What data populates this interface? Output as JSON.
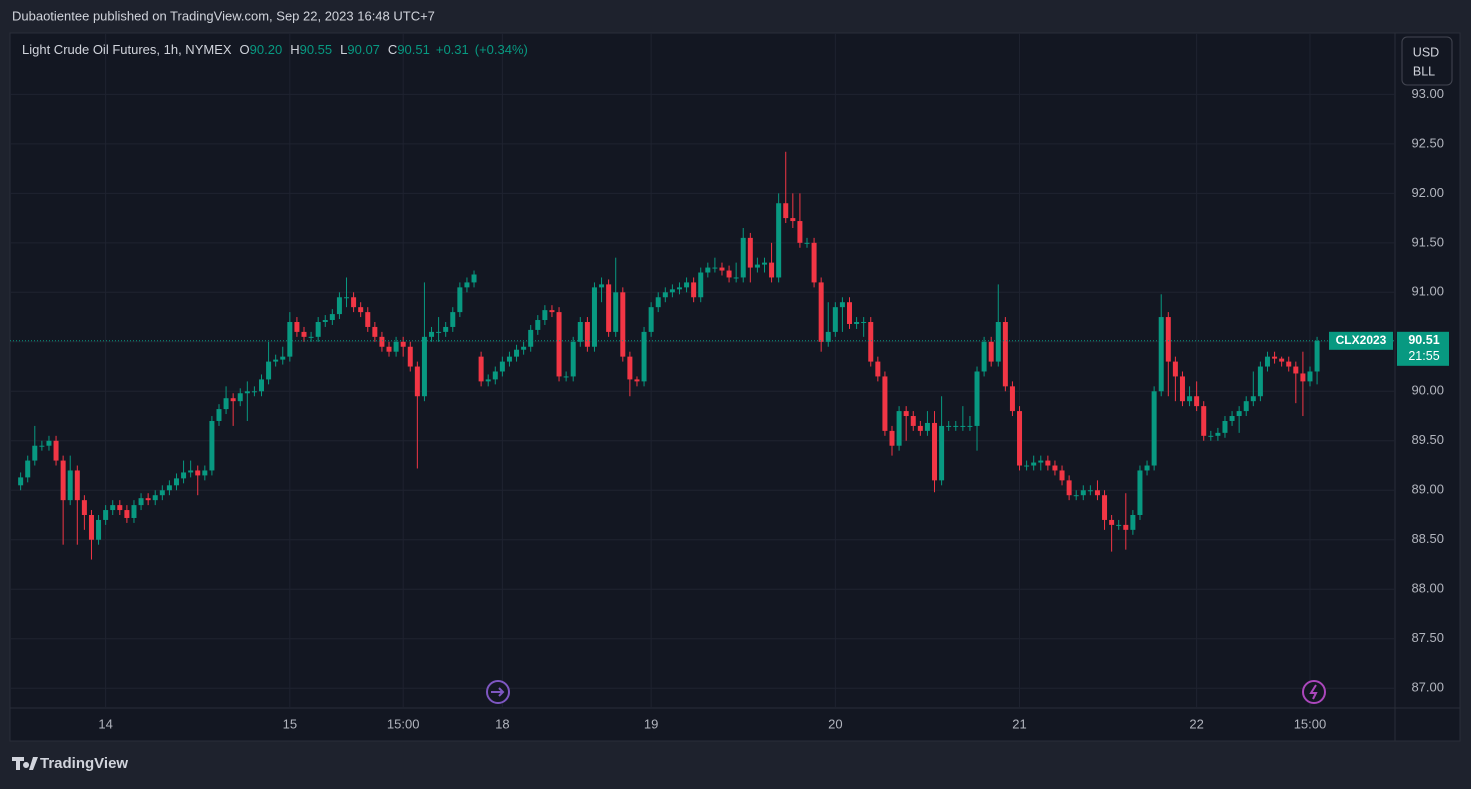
{
  "header": {
    "text": "Dubaotientee published on TradingView.com, Sep 22, 2023 16:48 UTC+7"
  },
  "footer": {
    "brand": "TradingView"
  },
  "chart_data": {
    "type": "candlestick",
    "title": "Light Crude Oil Futures, 1h, NYMEX",
    "legend": {
      "o_label": "O",
      "o": "90.20",
      "h_label": "H",
      "h": "90.55",
      "l_label": "L",
      "l": "90.07",
      "c_label": "C",
      "c": "90.51",
      "change": "+0.31",
      "change_pct": "(+0.34%)"
    },
    "currency": "USD",
    "unit": "BLL",
    "symbol": "CLX2023",
    "last_price_label": "90.51",
    "countdown": "21:55",
    "up_color": "#089981",
    "down_color": "#f23645",
    "grid": true,
    "open": [
      89.05,
      89.13,
      89.3,
      89.45,
      89.45,
      89.5,
      89.3,
      88.9,
      89.2,
      88.9,
      88.75,
      88.5,
      88.7,
      88.8,
      88.85,
      88.8,
      88.72,
      88.85,
      88.92,
      88.9,
      88.95,
      89.0,
      89.05,
      89.12,
      89.18,
      89.2,
      89.15,
      89.2,
      89.7,
      89.82,
      89.93,
      89.9,
      89.98,
      90.0,
      90.0,
      90.12,
      90.3,
      90.32,
      90.35,
      90.7,
      90.6,
      90.55,
      90.55,
      90.7,
      90.72,
      90.78,
      90.95,
      90.95,
      90.85,
      90.8,
      90.65,
      90.55,
      90.45,
      90.4,
      90.5,
      90.45,
      90.25,
      89.95,
      90.55,
      90.6,
      90.6,
      90.65,
      90.8,
      91.05,
      91.1,
      90.35,
      90.1,
      90.12,
      90.2,
      90.3,
      90.35,
      90.42,
      90.45,
      90.62,
      90.72,
      90.82,
      90.8,
      90.15,
      90.15,
      90.5,
      90.7,
      90.45,
      91.05,
      91.08,
      90.6,
      91.0,
      90.35,
      90.12,
      90.1,
      90.6,
      90.85,
      90.95,
      91.0,
      91.03,
      91.05,
      91.1,
      90.95,
      91.2,
      91.25,
      91.25,
      91.22,
      91.15,
      91.15,
      91.55,
      91.25,
      91.28,
      91.3,
      91.15,
      91.9,
      91.75,
      91.72,
      91.5,
      91.5,
      91.1,
      90.5,
      90.6,
      90.85,
      90.9,
      90.68,
      90.7,
      90.7,
      90.3,
      90.15,
      89.6,
      89.45,
      89.8,
      89.75,
      89.65,
      89.6,
      89.68,
      89.1,
      89.65,
      89.65,
      89.65,
      89.65,
      89.65,
      90.2,
      90.5,
      90.3,
      90.7,
      90.05,
      89.8,
      89.25,
      89.25,
      89.28,
      89.3,
      89.25,
      89.2,
      89.1,
      88.95,
      88.95,
      89.0,
      89.0,
      88.95,
      88.7,
      88.65,
      88.65,
      88.6,
      88.75,
      89.2,
      89.25,
      90.0,
      90.75,
      90.3,
      90.15,
      89.9,
      89.95,
      89.85,
      89.55,
      89.55,
      89.58,
      89.7,
      89.75,
      89.8,
      89.9,
      89.95,
      90.25,
      90.35,
      90.33,
      90.3,
      90.25,
      90.18,
      90.1,
      90.2
    ],
    "high": [
      89.18,
      89.35,
      89.65,
      89.5,
      89.55,
      89.55,
      89.35,
      89.35,
      89.25,
      88.95,
      88.8,
      88.75,
      88.85,
      88.9,
      88.9,
      88.85,
      88.9,
      88.97,
      88.97,
      89.0,
      89.05,
      89.1,
      89.17,
      89.3,
      89.3,
      89.25,
      89.25,
      89.75,
      89.87,
      90.05,
      89.98,
      90.03,
      90.1,
      90.05,
      90.17,
      90.5,
      90.37,
      90.45,
      90.8,
      90.75,
      90.65,
      90.6,
      90.75,
      90.77,
      90.83,
      91.0,
      91.15,
      91.0,
      90.9,
      90.85,
      90.7,
      90.6,
      90.5,
      90.55,
      90.55,
      90.5,
      90.3,
      91.1,
      90.65,
      90.75,
      90.7,
      90.85,
      91.1,
      91.15,
      91.22,
      90.4,
      90.17,
      90.25,
      90.35,
      90.4,
      90.47,
      90.5,
      90.67,
      90.77,
      90.87,
      90.87,
      90.85,
      90.2,
      90.55,
      90.75,
      90.75,
      91.1,
      91.15,
      91.13,
      91.35,
      91.05,
      90.4,
      90.15,
      90.65,
      90.9,
      91.0,
      91.05,
      91.08,
      91.1,
      91.15,
      91.15,
      91.25,
      91.3,
      91.35,
      91.3,
      91.27,
      91.3,
      91.65,
      91.6,
      91.35,
      91.35,
      91.5,
      92.0,
      92.42,
      92.0,
      92.0,
      91.55,
      91.55,
      91.15,
      90.9,
      90.9,
      90.95,
      90.95,
      90.75,
      90.75,
      90.75,
      90.35,
      90.2,
      89.65,
      89.85,
      89.85,
      89.8,
      89.7,
      89.8,
      89.8,
      89.95,
      89.7,
      89.7,
      89.85,
      89.75,
      90.25,
      90.55,
      90.55,
      91.08,
      90.75,
      90.1,
      89.85,
      89.3,
      89.35,
      89.35,
      89.35,
      89.3,
      89.25,
      89.15,
      89.0,
      89.05,
      89.05,
      89.1,
      89.0,
      88.75,
      88.7,
      88.97,
      88.8,
      89.25,
      89.3,
      90.05,
      90.98,
      90.8,
      90.35,
      90.2,
      90.05,
      90.1,
      89.9,
      89.6,
      89.63,
      89.75,
      89.8,
      89.85,
      89.95,
      90.2,
      90.3,
      90.4,
      90.4,
      90.35,
      90.35,
      90.3,
      90.4,
      90.25,
      90.55
    ],
    "low": [
      89.0,
      89.08,
      89.25,
      89.4,
      89.4,
      89.25,
      88.45,
      88.85,
      88.45,
      88.6,
      88.3,
      88.45,
      88.65,
      88.75,
      88.75,
      88.67,
      88.67,
      88.8,
      88.85,
      88.85,
      88.9,
      88.95,
      89.0,
      89.07,
      89.13,
      88.95,
      89.1,
      89.15,
      89.65,
      89.77,
      89.65,
      89.85,
      89.7,
      89.95,
      89.95,
      90.07,
      90.25,
      90.27,
      90.3,
      90.55,
      90.5,
      90.5,
      90.5,
      90.65,
      90.67,
      90.73,
      90.85,
      90.8,
      90.75,
      90.6,
      90.5,
      90.4,
      90.35,
      90.35,
      90.35,
      90.2,
      89.22,
      89.9,
      90.5,
      90.5,
      90.55,
      90.6,
      90.75,
      91.0,
      91.05,
      90.05,
      90.05,
      90.07,
      90.15,
      90.25,
      90.3,
      90.37,
      90.4,
      90.57,
      90.67,
      90.75,
      90.1,
      90.1,
      90.1,
      90.45,
      90.4,
      90.4,
      90.9,
      90.55,
      90.55,
      90.3,
      89.95,
      90.05,
      90.05,
      90.55,
      90.8,
      90.9,
      90.95,
      90.98,
      91.0,
      90.9,
      90.9,
      91.15,
      91.2,
      91.17,
      91.1,
      91.1,
      91.1,
      91.1,
      91.2,
      91.2,
      91.1,
      91.1,
      91.7,
      91.65,
      91.45,
      91.45,
      91.05,
      90.4,
      90.45,
      90.55,
      90.6,
      90.63,
      90.63,
      90.55,
      90.25,
      90.1,
      89.55,
      89.35,
      89.4,
      89.5,
      89.6,
      89.55,
      89.55,
      88.98,
      89.05,
      89.6,
      89.6,
      89.6,
      89.6,
      89.4,
      90.15,
      90.25,
      90.25,
      90.0,
      89.75,
      89.2,
      89.2,
      89.2,
      89.2,
      89.2,
      89.15,
      89.05,
      88.9,
      88.9,
      88.9,
      88.95,
      88.9,
      88.6,
      88.38,
      88.6,
      88.4,
      88.55,
      88.7,
      89.15,
      89.2,
      89.95,
      89.95,
      89.9,
      89.85,
      89.85,
      89.8,
      89.5,
      89.5,
      89.5,
      89.53,
      89.65,
      89.58,
      89.75,
      89.85,
      89.9,
      90.2,
      90.28,
      90.25,
      90.2,
      89.88,
      89.75,
      90.05,
      90.07
    ],
    "close": [
      89.13,
      89.3,
      89.45,
      89.45,
      89.5,
      89.3,
      88.9,
      89.2,
      88.9,
      88.75,
      88.5,
      88.7,
      88.8,
      88.85,
      88.8,
      88.72,
      88.85,
      88.92,
      88.9,
      88.95,
      89.0,
      89.05,
      89.12,
      89.18,
      89.2,
      89.15,
      89.2,
      89.7,
      89.82,
      89.93,
      89.9,
      89.98,
      90.0,
      90.0,
      90.12,
      90.3,
      90.32,
      90.35,
      90.7,
      90.6,
      90.55,
      90.55,
      90.7,
      90.72,
      90.78,
      90.95,
      90.95,
      90.85,
      90.8,
      90.65,
      90.55,
      90.45,
      90.4,
      90.5,
      90.45,
      90.25,
      89.95,
      90.55,
      90.6,
      90.6,
      90.65,
      90.8,
      91.05,
      91.1,
      91.18,
      90.1,
      90.12,
      90.2,
      90.3,
      90.35,
      90.42,
      90.45,
      90.62,
      90.72,
      90.82,
      90.8,
      90.15,
      90.15,
      90.5,
      90.7,
      90.45,
      91.05,
      91.08,
      90.6,
      91.0,
      90.35,
      90.12,
      90.1,
      90.6,
      90.85,
      90.95,
      91.0,
      91.03,
      91.05,
      91.1,
      90.95,
      91.2,
      91.25,
      91.25,
      91.22,
      91.15,
      91.15,
      91.55,
      91.25,
      91.28,
      91.3,
      91.15,
      91.9,
      91.75,
      91.72,
      91.5,
      91.5,
      91.1,
      90.5,
      90.6,
      90.85,
      90.9,
      90.68,
      90.7,
      90.7,
      90.3,
      90.15,
      89.6,
      89.45,
      89.8,
      89.75,
      89.65,
      89.6,
      89.68,
      89.1,
      89.65,
      89.65,
      89.65,
      89.65,
      89.65,
      90.2,
      90.5,
      90.3,
      90.7,
      90.05,
      89.8,
      89.25,
      89.25,
      89.28,
      89.3,
      89.25,
      89.2,
      89.1,
      88.95,
      88.95,
      89.0,
      89.0,
      88.95,
      88.7,
      88.65,
      88.65,
      88.6,
      88.75,
      89.2,
      89.25,
      90.0,
      90.75,
      90.3,
      90.15,
      89.9,
      89.95,
      89.85,
      89.55,
      89.55,
      89.58,
      89.7,
      89.75,
      89.8,
      89.9,
      89.95,
      90.25,
      90.35,
      90.33,
      90.3,
      90.25,
      90.18,
      90.1,
      90.2,
      90.51
    ],
    "ylim": [
      86.8,
      93.62
    ],
    "yticks": [
      {
        "value": 87,
        "label": "87.00"
      },
      {
        "value": 87.5,
        "label": "87.50"
      },
      {
        "value": 88,
        "label": "88.00"
      },
      {
        "value": 88.5,
        "label": "88.50"
      },
      {
        "value": 89,
        "label": "89.00"
      },
      {
        "value": 89.5,
        "label": "89.50"
      },
      {
        "value": 90,
        "label": "90.00"
      },
      {
        "value": 90.5,
        "label": "90.50"
      },
      {
        "value": 91,
        "label": "91.00"
      },
      {
        "value": 91.5,
        "label": "91.50"
      },
      {
        "value": 92,
        "label": "92.00"
      },
      {
        "value": 92.5,
        "label": "92.50"
      },
      {
        "value": 93,
        "label": "93.00"
      }
    ],
    "xlim": [
      -1.5,
      194
    ],
    "xticks": [
      {
        "value": 12,
        "label": "14"
      },
      {
        "value": 38,
        "label": "15"
      },
      {
        "value": 54,
        "label": "15:00"
      },
      {
        "value": 68,
        "label": "18"
      },
      {
        "value": 89,
        "label": "19"
      },
      {
        "value": 115,
        "label": "20"
      },
      {
        "value": 141,
        "label": "21"
      },
      {
        "value": 166,
        "label": "22"
      },
      {
        "value": 182,
        "label": "15:00"
      }
    ]
  }
}
